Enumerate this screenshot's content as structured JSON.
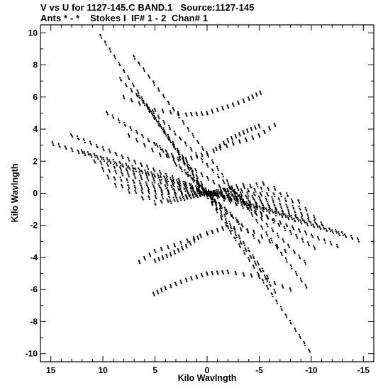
{
  "header": {
    "title_line1": "V vs U for 1127-145.C BAND.1   Source:1127-145",
    "title_line2": "Ants * - *    Stokes I  IF# 1 - 2  Chan# 1"
  },
  "chart_data": {
    "type": "scatter",
    "xlabel": "Kilo Wavlngth",
    "ylabel": "Kilo Wavlngth",
    "xlim": [
      16,
      -16
    ],
    "ylim": [
      -10.5,
      10.5
    ],
    "x_ticks": [
      15,
      10,
      5,
      0,
      -5,
      -10,
      -15
    ],
    "x_tick_labels": [
      "15",
      "10",
      "5",
      "0",
      "-5",
      "-10",
      "-15"
    ],
    "y_ticks": [
      10,
      8,
      6,
      4,
      2,
      0,
      -2,
      -4,
      -6,
      -8,
      -10
    ],
    "y_tick_labels": [
      "10",
      "8",
      "6",
      "4",
      "2",
      "0",
      "-2",
      "-4",
      "-6",
      "-8",
      "-10"
    ],
    "grid": false,
    "series": [
      {
        "marker": "dot",
        "color": "#000000",
        "description": "uv-coverage tracks; each track listed as [u_start, v_start, u_end, v_end]; points are the symmetric conjugates too",
        "tracks": [
          [
            10.2,
            9.8,
            -9.8,
            -9.8
          ],
          [
            7.0,
            8.5,
            -9.5,
            -5.8
          ],
          [
            8.3,
            7.1,
            -9.4,
            -4.3
          ],
          [
            9.6,
            5.0,
            -10.3,
            -3.4
          ],
          [
            13.0,
            3.6,
            -12.5,
            -3.3
          ],
          [
            14.8,
            3.1,
            -14.5,
            -2.9
          ],
          [
            12.0,
            2.6,
            -13.0,
            -2.5
          ],
          [
            10.8,
            2.0,
            -11.0,
            -1.9
          ],
          [
            10.0,
            1.5,
            -10.3,
            -1.5
          ],
          [
            9.5,
            1.0,
            -9.5,
            -1.0
          ],
          [
            8.8,
            0.5,
            -8.8,
            -0.5
          ],
          [
            7.5,
            0.1,
            -7.7,
            -0.1
          ],
          [
            6.2,
            -0.3,
            -6.5,
            0.3
          ],
          [
            5.0,
            -0.6,
            -5.4,
            0.6
          ],
          [
            3.5,
            -0.5,
            -3.5,
            0.5
          ],
          [
            2.0,
            -0.2,
            -2.0,
            0.2
          ],
          [
            4.8,
            3.0,
            -5.0,
            -3.0
          ],
          [
            3.0,
            1.8,
            -3.0,
            -1.8
          ],
          [
            1.8,
            1.2,
            -1.8,
            -1.2
          ],
          [
            0.8,
            0.6,
            -0.8,
            -0.6
          ],
          [
            5.5,
            5.2,
            -5.8,
            -5.2
          ],
          [
            6.5,
            6.0,
            -6.5,
            -6.1
          ]
        ],
        "arcs": [
          {
            "u": [
              8.0,
              5.0,
              2.0,
              0.0,
              -2.0,
              -4.0,
              -5.5
            ],
            "v": [
              6.0,
              5.2,
              4.9,
              5.0,
              5.4,
              5.9,
              6.4
            ]
          },
          {
            "u": [
              7.5,
              4.5,
              2.0,
              0.0,
              -2.5,
              -5.0,
              -7.0
            ],
            "v": [
              3.6,
              2.4,
              2.1,
              2.5,
              3.1,
              3.6,
              4.5
            ]
          },
          {
            "u": [
              5.0,
              3.5,
              2.0,
              0.5
            ],
            "v": [
              -4.2,
              -3.8,
              -3.3,
              -2.6
            ]
          },
          {
            "u": [
              -8.0,
              -5.0,
              -2.0,
              0.0,
              2.0,
              4.0,
              5.5
            ],
            "v": [
              -6.0,
              -5.2,
              -4.9,
              -5.0,
              -5.4,
              -5.9,
              -6.4
            ]
          },
          {
            "u": [
              -7.5,
              -4.5,
              -2.0,
              0.0,
              2.5,
              5.0,
              7.0
            ],
            "v": [
              -3.6,
              -2.4,
              -2.1,
              -2.5,
              -3.1,
              -3.6,
              -4.5
            ]
          },
          {
            "u": [
              -5.0,
              -3.5,
              -2.0,
              -0.5
            ],
            "v": [
              4.2,
              3.8,
              3.3,
              2.6
            ]
          }
        ]
      }
    ]
  }
}
